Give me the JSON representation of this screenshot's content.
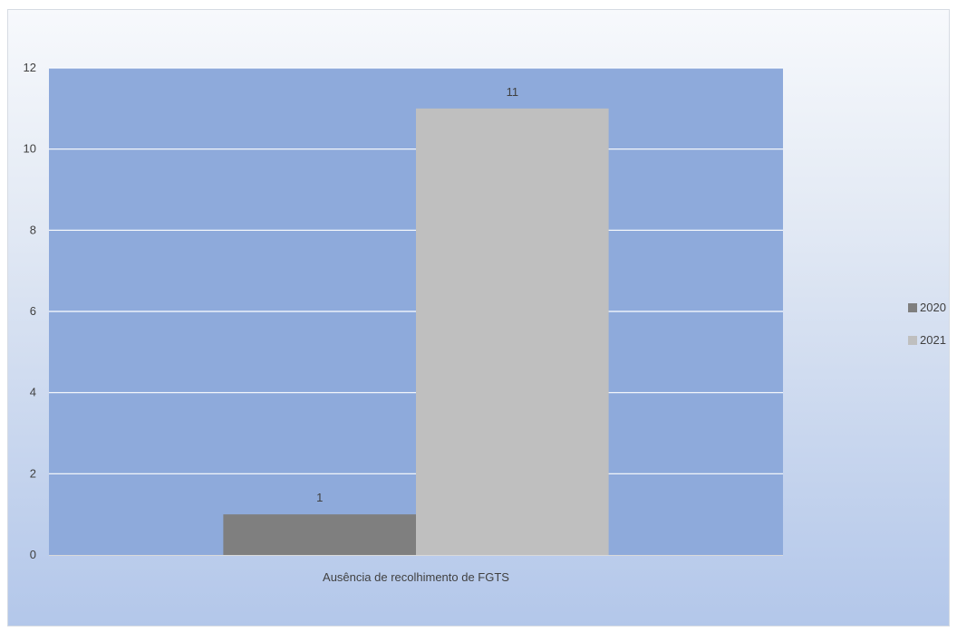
{
  "chart_data": {
    "type": "bar",
    "title": "",
    "xlabel": "",
    "ylabel": "",
    "categories": [
      "Ausência de recolhimento de FGTS"
    ],
    "series": [
      {
        "name": "2020",
        "values": [
          1
        ],
        "color": "#7f7f7f"
      },
      {
        "name": "2021",
        "values": [
          11
        ],
        "color": "#bfbfbf"
      }
    ],
    "ylim": [
      0,
      12
    ],
    "yticks": [
      "0",
      "2",
      "4",
      "6",
      "8",
      "10",
      "12"
    ],
    "data_labels": [
      "1",
      "11"
    ],
    "grid": true,
    "legend_position": "right",
    "plot_background": "#8eaadb",
    "gridline_color": "#ffffff"
  }
}
